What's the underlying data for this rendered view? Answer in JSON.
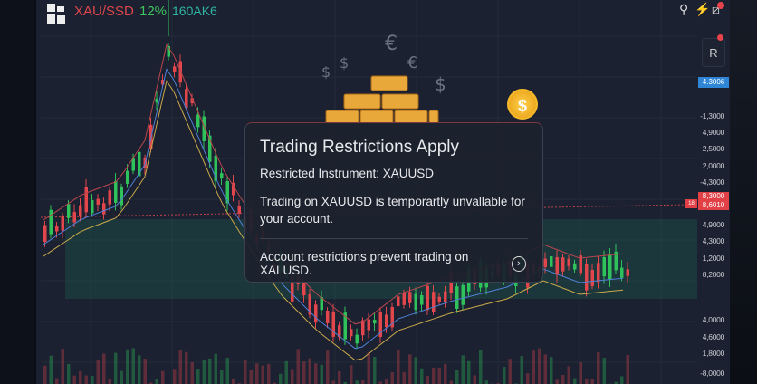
{
  "header": {
    "pair": "XAU/SSD",
    "change": "12%",
    "code": "160AK6"
  },
  "toolbar": {
    "icons": [
      "pin-icon",
      "lightning-icon",
      "chart-alert-icon"
    ],
    "r_button": "R"
  },
  "price_axis": {
    "current_blue": "4.3006",
    "labels_top": [
      "-1,3000",
      "4,9000",
      "2,5000",
      "2,0000",
      "-4,3000"
    ],
    "current_red": [
      "8,3000",
      "8,6010"
    ],
    "red_tag": "18",
    "labels_mid": [
      "4,9000",
      "4,3000",
      "1,2000",
      "8,2000"
    ],
    "labels_bottom": [
      "4,0000",
      "4,6000",
      "1,8000",
      "-8,0000"
    ]
  },
  "modal": {
    "title": "Trading Restrictions Apply",
    "subtitle": "Restricted Instrument: XAUUSD",
    "body": "Trading on XAUUSD is temporartly unvallable for your account.",
    "footer": "Account restrictions prevent trading on XALUSD.",
    "coin_symbol": "$"
  },
  "colors": {
    "up": "#2fc25b",
    "down": "#e0464c",
    "accent": "#2f86d6",
    "gold": "#f0b43a"
  }
}
